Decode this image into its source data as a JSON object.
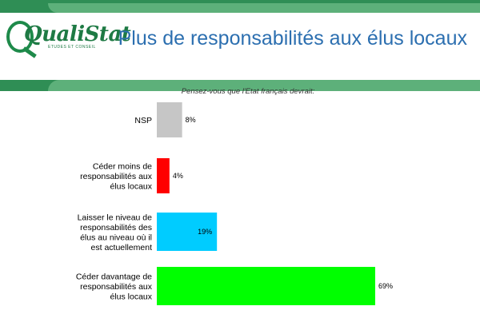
{
  "header": {
    "logo_text": "QualiStat",
    "logo_tagline": "ETUDES ET CONSEIL",
    "title": "Plus de responsabilités aux élus locaux"
  },
  "colors": {
    "dark_green": "#2f8e55",
    "light_green": "#5db07a",
    "title_blue": "#2c6fb0"
  },
  "chart_data": {
    "type": "bar",
    "orientation": "horizontal",
    "subtitle": "Pensez-vous que l'Etat français devrait:",
    "categories": [
      [
        "NSP"
      ],
      [
        "Céder moins de",
        "responsabilités aux",
        "élus locaux"
      ],
      [
        "Laisser le niveau de",
        "responsabilités des",
        "élus au niveau où il",
        "est actuellement"
      ],
      [
        "Céder davantage de",
        "responsabilités aux",
        "élus locaux"
      ]
    ],
    "values": [
      8,
      4,
      19,
      69
    ],
    "value_labels": [
      "8%",
      "4%",
      "19%",
      "69%"
    ],
    "bar_colors": [
      "#c6c6c6",
      "#ff0000",
      "#00ccff",
      "#00ff00"
    ],
    "xlim": [
      0,
      72
    ],
    "grid": false,
    "legend": "none"
  }
}
